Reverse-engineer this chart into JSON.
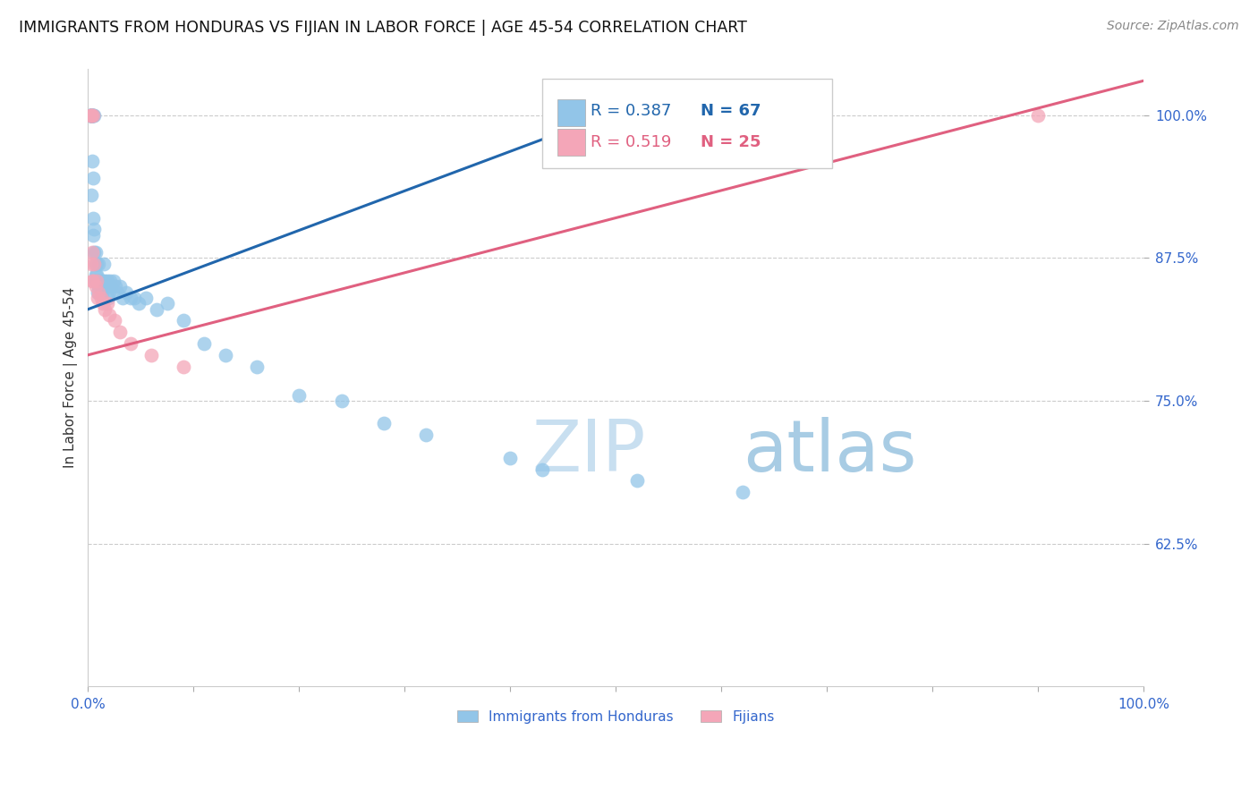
{
  "title": "IMMIGRANTS FROM HONDURAS VS FIJIAN IN LABOR FORCE | AGE 45-54 CORRELATION CHART",
  "source": "Source: ZipAtlas.com",
  "ylabel": "In Labor Force | Age 45-54",
  "xlim": [
    0.0,
    1.0
  ],
  "ylim": [
    0.5,
    1.04
  ],
  "xtick_positions": [
    0.0,
    0.1,
    0.2,
    0.3,
    0.4,
    0.5,
    0.6,
    0.7,
    0.8,
    0.9,
    1.0
  ],
  "xticklabels": [
    "0.0%",
    "",
    "",
    "",
    "",
    "",
    "",
    "",
    "",
    "",
    "100.0%"
  ],
  "ytick_positions": [
    0.625,
    0.75,
    0.875,
    1.0
  ],
  "yticklabels": [
    "62.5%",
    "75.0%",
    "87.5%",
    "100.0%"
  ],
  "legend_labels": [
    "Immigrants from Honduras",
    "Fijians"
  ],
  "R_honduras": 0.387,
  "N_honduras": 67,
  "R_fijian": 0.519,
  "N_fijian": 25,
  "blue_scatter_color": "#92c5e8",
  "pink_scatter_color": "#f4a6b8",
  "blue_line_color": "#2166ac",
  "pink_line_color": "#e06080",
  "tick_label_color": "#3366cc",
  "watermark_color": "#daeaf6",
  "honduras_x": [
    0.002,
    0.002,
    0.002,
    0.002,
    0.003,
    0.003,
    0.003,
    0.003,
    0.003,
    0.004,
    0.004,
    0.004,
    0.004,
    0.005,
    0.005,
    0.005,
    0.005,
    0.005,
    0.006,
    0.006,
    0.006,
    0.007,
    0.007,
    0.007,
    0.007,
    0.008,
    0.008,
    0.009,
    0.009,
    0.01,
    0.01,
    0.011,
    0.012,
    0.013,
    0.014,
    0.015,
    0.016,
    0.017,
    0.018,
    0.019,
    0.02,
    0.021,
    0.022,
    0.024,
    0.026,
    0.028,
    0.03,
    0.033,
    0.036,
    0.04,
    0.044,
    0.048,
    0.055,
    0.065,
    0.075,
    0.09,
    0.11,
    0.13,
    0.16,
    0.2,
    0.24,
    0.28,
    0.32,
    0.4,
    0.43,
    0.52,
    0.62
  ],
  "honduras_y": [
    1.0,
    1.0,
    1.0,
    1.0,
    1.0,
    1.0,
    1.0,
    1.0,
    0.93,
    1.0,
    1.0,
    1.0,
    0.96,
    1.0,
    1.0,
    0.945,
    0.91,
    0.895,
    1.0,
    0.9,
    0.88,
    0.88,
    0.87,
    0.86,
    0.855,
    0.87,
    0.86,
    0.855,
    0.845,
    0.87,
    0.85,
    0.855,
    0.85,
    0.845,
    0.855,
    0.87,
    0.855,
    0.85,
    0.855,
    0.84,
    0.845,
    0.855,
    0.85,
    0.855,
    0.85,
    0.845,
    0.85,
    0.84,
    0.845,
    0.84,
    0.84,
    0.835,
    0.84,
    0.83,
    0.835,
    0.82,
    0.8,
    0.79,
    0.78,
    0.755,
    0.75,
    0.73,
    0.72,
    0.7,
    0.69,
    0.68,
    0.67
  ],
  "fijian_x": [
    0.002,
    0.003,
    0.003,
    0.003,
    0.004,
    0.004,
    0.005,
    0.005,
    0.006,
    0.007,
    0.008,
    0.009,
    0.01,
    0.012,
    0.014,
    0.016,
    0.018,
    0.02,
    0.025,
    0.03,
    0.04,
    0.06,
    0.09,
    0.68,
    0.9
  ],
  "fijian_y": [
    1.0,
    1.0,
    1.0,
    0.87,
    0.88,
    0.855,
    1.0,
    0.855,
    0.87,
    0.85,
    0.855,
    0.84,
    0.845,
    0.84,
    0.835,
    0.83,
    0.835,
    0.825,
    0.82,
    0.81,
    0.8,
    0.79,
    0.78,
    1.0,
    1.0
  ],
  "blue_line_x0": 0.0,
  "blue_line_y0": 0.83,
  "blue_line_x1": 0.55,
  "blue_line_y1": 1.02,
  "pink_line_x0": 0.0,
  "pink_line_y0": 0.79,
  "pink_line_x1": 1.0,
  "pink_line_y1": 1.03
}
